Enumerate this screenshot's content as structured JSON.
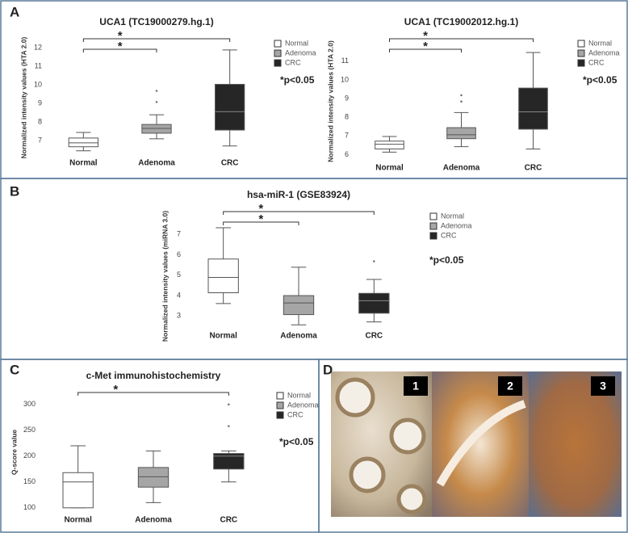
{
  "panels": [
    "A",
    "B",
    "C",
    "D"
  ],
  "micrographs": [
    "1",
    "2",
    "3"
  ],
  "chart_data": [
    {
      "type": "box",
      "title": "UCA1 (TC19000279.hg.1)",
      "ylabel": "Normalized intensity values (HTA 2.0)",
      "categories": [
        "Normal",
        "Adenoma",
        "CRC"
      ],
      "series": [
        {
          "name": "Normal",
          "color": "#ffffff",
          "min": 6.44,
          "q1": 6.66,
          "median": 6.87,
          "q3": 7.13,
          "max": 7.43,
          "outliers": []
        },
        {
          "name": "Adenoma",
          "color": "#a6a6a6",
          "min": 7.09,
          "q1": 7.39,
          "median": 7.65,
          "q3": 7.86,
          "max": 8.38,
          "outliers": [
            9.07,
            9.67
          ]
        },
        {
          "name": "CRC",
          "color": "#262626",
          "min": 6.7,
          "q1": 7.56,
          "median": 8.55,
          "q3": 10.02,
          "max": 11.87,
          "outliers": []
        }
      ],
      "ylim": [
        6.3,
        12.3
      ],
      "yticks": [
        7,
        8,
        9,
        10,
        11,
        12
      ],
      "annotation": "*p<0.05",
      "significance": [
        {
          "between": [
            "Normal",
            "CRC"
          ],
          "label": "*"
        },
        {
          "between": [
            "Normal",
            "Adenoma"
          ],
          "label": "*"
        }
      ]
    },
    {
      "type": "box",
      "title": "UCA1 (TC19002012.hg.1)",
      "ylabel": "Normalized intensity values (HTA 2.0)",
      "categories": [
        "Normal",
        "Adenoma",
        "CRC"
      ],
      "series": [
        {
          "name": "Normal",
          "color": "#ffffff",
          "min": 6.13,
          "q1": 6.3,
          "median": 6.55,
          "q3": 6.72,
          "max": 6.97,
          "outliers": []
        },
        {
          "name": "Adenoma",
          "color": "#a6a6a6",
          "min": 6.42,
          "q1": 6.85,
          "median": 7.06,
          "q3": 7.44,
          "max": 8.25,
          "outliers": [
            8.84,
            9.18
          ]
        },
        {
          "name": "CRC",
          "color": "#262626",
          "min": 6.3,
          "q1": 7.36,
          "median": 8.29,
          "q3": 9.56,
          "max": 11.47,
          "outliers": []
        }
      ],
      "ylim": [
        5.8,
        11.9
      ],
      "yticks": [
        6,
        7,
        8,
        9,
        10,
        11
      ],
      "annotation": "*p<0.05",
      "significance": [
        {
          "between": [
            "Normal",
            "CRC"
          ],
          "label": "*"
        },
        {
          "between": [
            "Normal",
            "Adenoma"
          ],
          "label": "*"
        }
      ]
    },
    {
      "type": "box",
      "title": "hsa-miR-1 (GSE83924)",
      "ylabel": "Normalized intensity values (miRNA 3.0)",
      "categories": [
        "Normal",
        "Adenoma",
        "CRC"
      ],
      "series": [
        {
          "name": "Normal",
          "color": "#ffffff",
          "min": 3.61,
          "q1": 4.14,
          "median": 4.89,
          "q3": 5.79,
          "max": 7.32,
          "outliers": []
        },
        {
          "name": "Adenoma",
          "color": "#a6a6a6",
          "min": 2.57,
          "q1": 3.07,
          "median": 3.64,
          "q3": 4.0,
          "max": 5.39,
          "outliers": []
        },
        {
          "name": "CRC",
          "color": "#262626",
          "min": 2.71,
          "q1": 3.14,
          "median": 3.75,
          "q3": 4.11,
          "max": 4.79,
          "outliers": [
            5.68
          ]
        }
      ],
      "ylim": [
        2.5,
        7.4
      ],
      "yticks": [
        3,
        4,
        5,
        6,
        7
      ],
      "annotation": "*p<0.05",
      "significance": [
        {
          "between": [
            "Normal",
            "CRC"
          ],
          "label": "*"
        },
        {
          "between": [
            "Normal",
            "Adenoma"
          ],
          "label": "*"
        }
      ]
    },
    {
      "type": "box",
      "title": "c-Met immunohistochemistry",
      "ylabel": "Q-score value",
      "categories": [
        "Normal",
        "Adenoma",
        "CRC"
      ],
      "series": [
        {
          "name": "Normal",
          "color": "#ffffff",
          "min": 100,
          "q1": 100,
          "median": 150,
          "q3": 168,
          "max": 220,
          "outliers": []
        },
        {
          "name": "Adenoma",
          "color": "#a6a6a6",
          "min": 110,
          "q1": 140,
          "median": 160,
          "q3": 178,
          "max": 210,
          "outliers": []
        },
        {
          "name": "CRC",
          "color": "#262626",
          "min": 150,
          "q1": 175,
          "median": 200,
          "q3": 205,
          "max": 210,
          "outliers": [
            258,
            300
          ]
        }
      ],
      "ylim": [
        95,
        320
      ],
      "yticks": [
        100,
        150,
        200,
        250,
        300
      ],
      "annotation": "*p<0.05",
      "significance": [
        {
          "between": [
            "Normal",
            "CRC"
          ],
          "label": "*"
        }
      ]
    }
  ]
}
